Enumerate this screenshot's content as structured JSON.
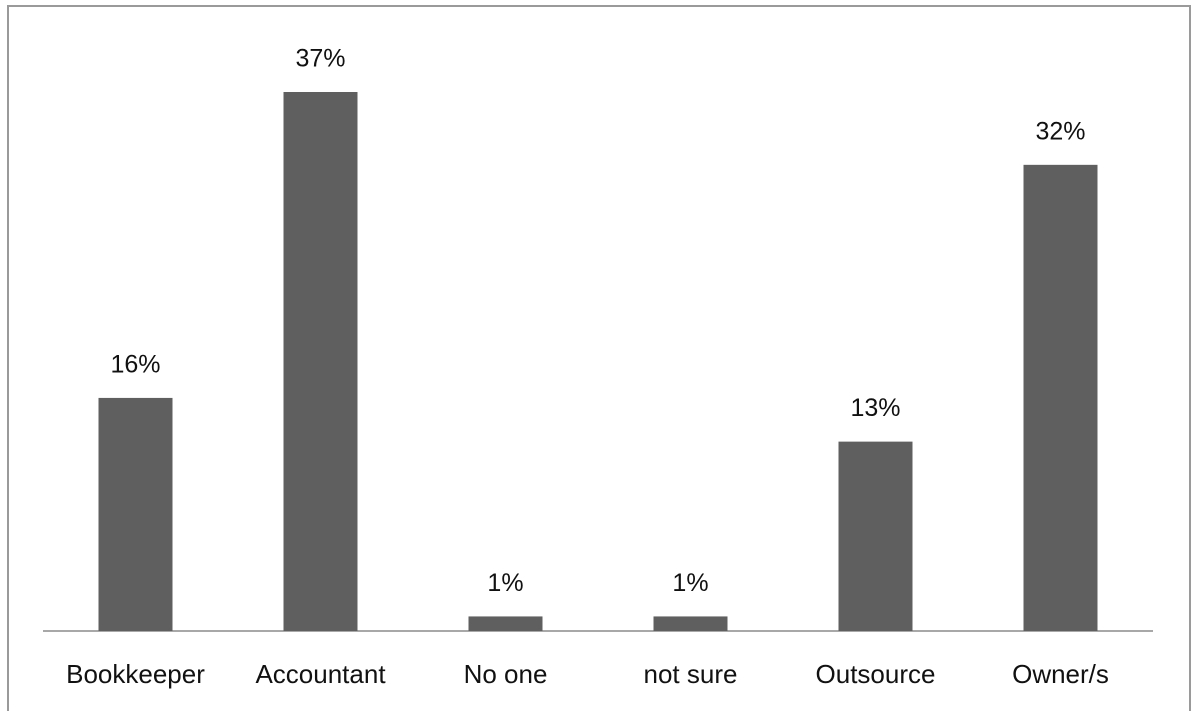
{
  "chart_data": {
    "type": "bar",
    "categories": [
      "Bookkeeper",
      "Accountant",
      "No one",
      "not sure",
      "Outsource",
      "Owner/s"
    ],
    "values": [
      16,
      37,
      1,
      1,
      13,
      32
    ],
    "value_labels": [
      "16%",
      "37%",
      "1%",
      "1%",
      "13%",
      "32%"
    ],
    "color": "#5f5f5f"
  }
}
